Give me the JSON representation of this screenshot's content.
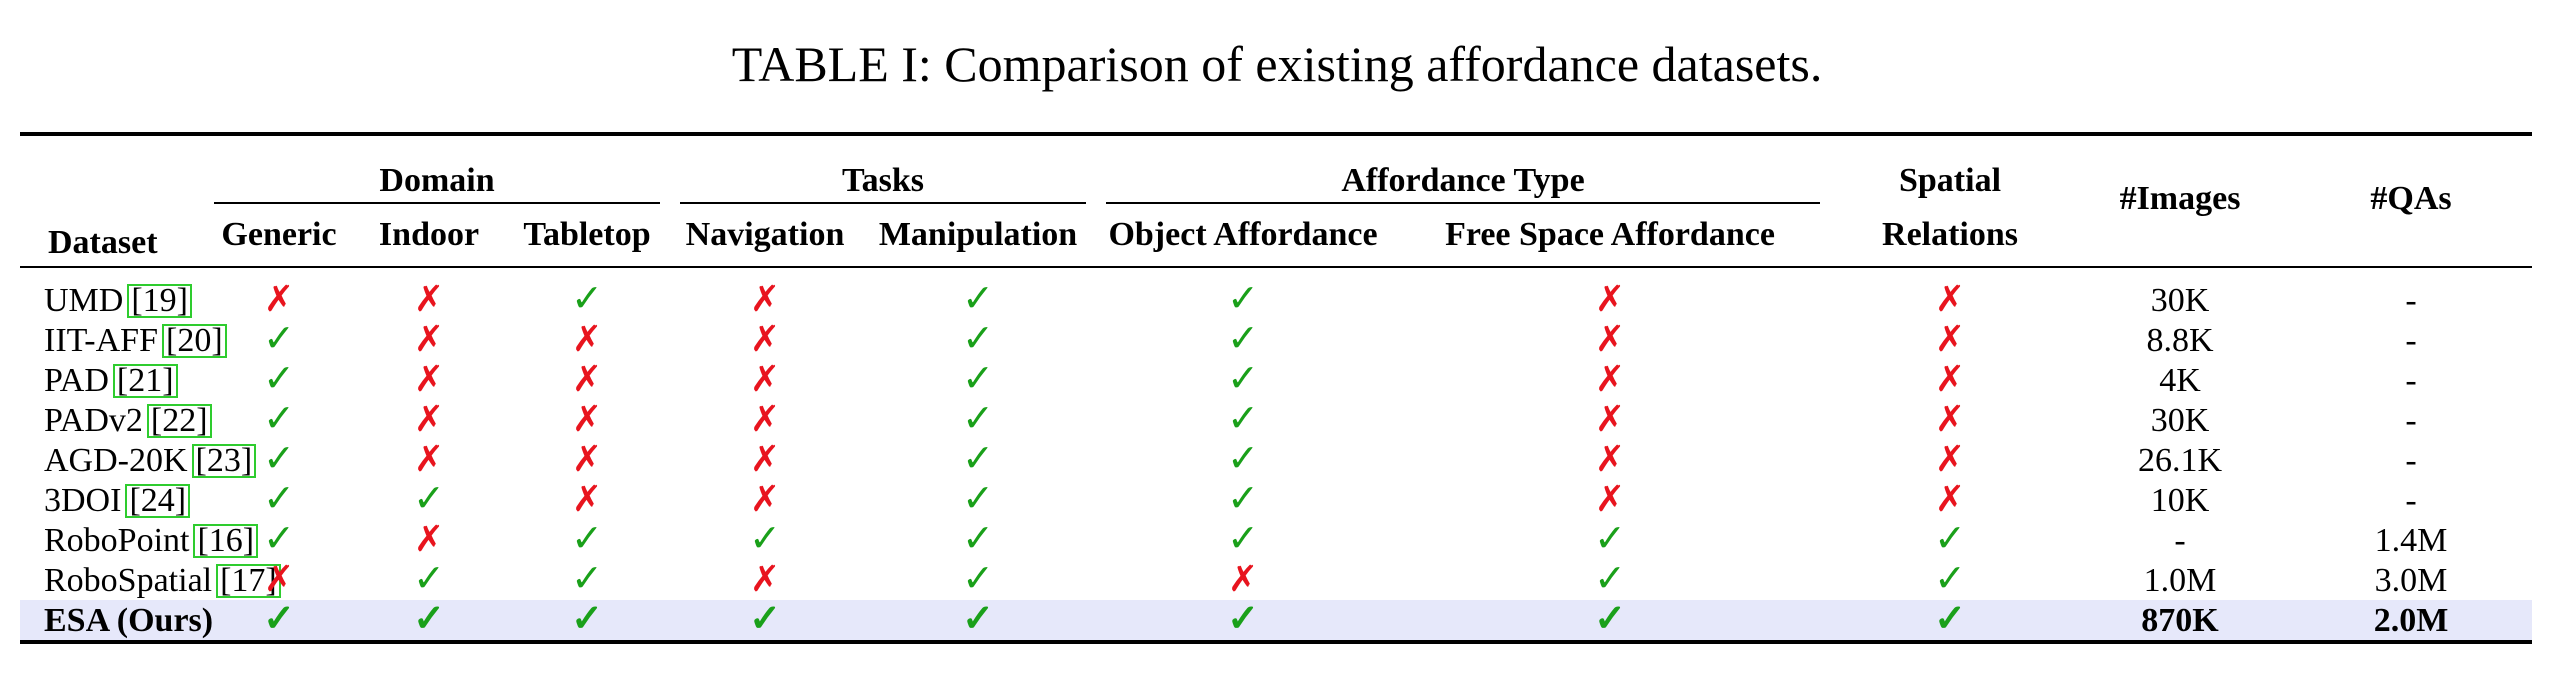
{
  "caption": "TABLE I: Comparison of existing affordance datasets.",
  "headers": {
    "dataset": "Dataset",
    "domain": "Domain",
    "tasks": "Tasks",
    "affordance_type": "Affordance Type",
    "spatial_top": "Spatial",
    "spatial_bottom": "Relations",
    "images": "#Images",
    "qas": "#QAs",
    "generic": "Generic",
    "indoor": "Indoor",
    "tabletop": "Tabletop",
    "navigation": "Navigation",
    "manipulation": "Manipulation",
    "object_affordance": "Object Affordance",
    "free_space_affordance": "Free Space Affordance"
  },
  "symbols": {
    "yes": "✓",
    "no": "✗"
  },
  "colors": {
    "yes": "#1aa01a",
    "no": "#e8141e",
    "highlight_row": "#e6e8fa",
    "citation_box": "#2ecc2e"
  },
  "rows": [
    {
      "name": "UMD",
      "cite": "[19]",
      "marks": [
        "no",
        "no",
        "yes",
        "no",
        "yes",
        "yes",
        "no",
        "no"
      ],
      "images": "30K",
      "qas": "-"
    },
    {
      "name": "IIT-AFF",
      "cite": "[20]",
      "marks": [
        "yes",
        "no",
        "no",
        "no",
        "yes",
        "yes",
        "no",
        "no"
      ],
      "images": "8.8K",
      "qas": "-"
    },
    {
      "name": "PAD",
      "cite": "[21]",
      "marks": [
        "yes",
        "no",
        "no",
        "no",
        "yes",
        "yes",
        "no",
        "no"
      ],
      "images": "4K",
      "qas": "-"
    },
    {
      "name": "PADv2",
      "cite": "[22]",
      "marks": [
        "yes",
        "no",
        "no",
        "no",
        "yes",
        "yes",
        "no",
        "no"
      ],
      "images": "30K",
      "qas": "-"
    },
    {
      "name": "AGD-20K",
      "cite": "[23]",
      "marks": [
        "yes",
        "no",
        "no",
        "no",
        "yes",
        "yes",
        "no",
        "no"
      ],
      "images": "26.1K",
      "qas": "-"
    },
    {
      "name": "3DOI",
      "cite": "[24]",
      "marks": [
        "yes",
        "yes",
        "no",
        "no",
        "yes",
        "yes",
        "no",
        "no"
      ],
      "images": "10K",
      "qas": "-"
    },
    {
      "name": "RoboPoint",
      "cite": "[16]",
      "marks": [
        "yes",
        "no",
        "yes",
        "yes",
        "yes",
        "yes",
        "yes",
        "yes"
      ],
      "images": "-",
      "qas": "1.4M"
    },
    {
      "name": "RoboSpatial",
      "cite": "[17]",
      "marks": [
        "no",
        "yes",
        "yes",
        "no",
        "yes",
        "no",
        "yes",
        "yes"
      ],
      "images": "1.0M",
      "qas": "3.0M"
    },
    {
      "name": "ESA (Ours)",
      "cite": "",
      "marks": [
        "yes",
        "yes",
        "yes",
        "yes",
        "yes",
        "yes",
        "yes",
        "yes"
      ],
      "images": "870K",
      "qas": "2.0M",
      "highlight": true
    }
  ]
}
